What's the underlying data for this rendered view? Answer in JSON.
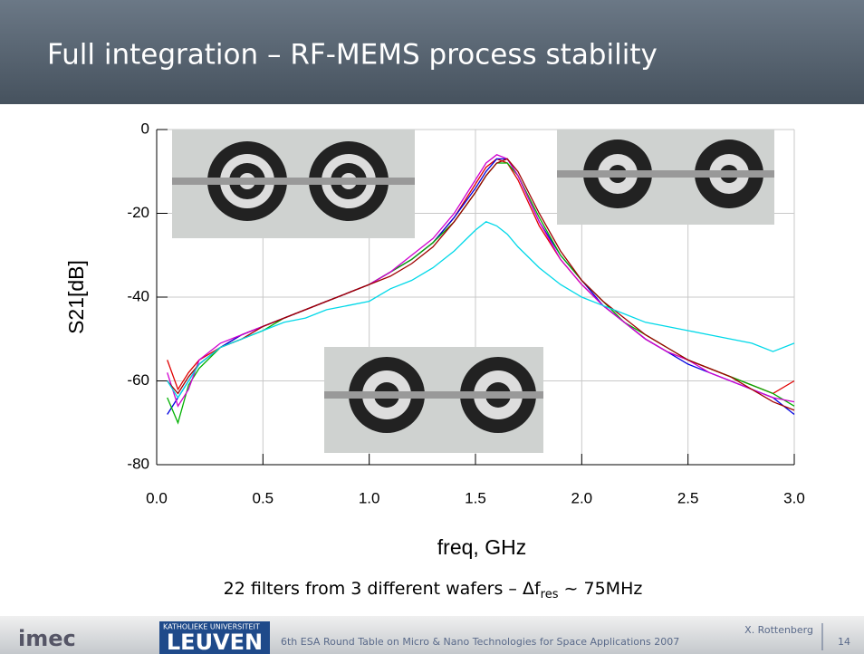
{
  "slide_title": "Full integration – RF-MEMS process stability",
  "chart_data": {
    "type": "line",
    "y_label": "S21[dB]",
    "x_label": "freq, GHz",
    "xlim": [
      0,
      3
    ],
    "ylim": [
      -80,
      0
    ],
    "xticks": [
      {
        "value": 0,
        "label": "0.0"
      },
      0.5,
      {
        "value": 1,
        "label": "1.0"
      },
      1.5,
      {
        "value": 2,
        "label": "2.0"
      },
      2.5,
      {
        "value": 3,
        "label": "3.0"
      }
    ],
    "yticks": [
      0,
      -20,
      -40,
      -60,
      -80
    ],
    "grid": true,
    "x": [
      0.05,
      0.1,
      0.15,
      0.2,
      0.3,
      0.4,
      0.5,
      0.6,
      0.7,
      0.8,
      0.9,
      1.0,
      1.1,
      1.2,
      1.3,
      1.4,
      1.5,
      1.55,
      1.6,
      1.65,
      1.7,
      1.8,
      1.9,
      2.0,
      2.1,
      2.2,
      2.3,
      2.4,
      2.5,
      2.6,
      2.7,
      2.8,
      2.9,
      3.0
    ],
    "series": [
      {
        "color": "#e00000",
        "values": [
          -55,
          -62,
          -58,
          -55,
          -52,
          -49,
          -47,
          -45,
          -43,
          -41,
          -39,
          -37,
          -34,
          -31,
          -27,
          -21,
          -13,
          -9,
          -7,
          -8,
          -12,
          -23,
          -31,
          -37,
          -42,
          -46,
          -50,
          -53,
          -55,
          -57,
          -59,
          -61,
          -63,
          -60
        ]
      },
      {
        "color": "#0000e0",
        "values": [
          -68,
          -64,
          -60,
          -56,
          -52,
          -49,
          -47,
          -45,
          -43,
          -41,
          -39,
          -37,
          -34,
          -31,
          -27,
          -21,
          -14,
          -10,
          -7,
          -7,
          -11,
          -22,
          -30,
          -36,
          -42,
          -46,
          -50,
          -53,
          -56,
          -58,
          -60,
          -62,
          -64,
          -68
        ]
      },
      {
        "color": "#00b000",
        "values": [
          -64,
          -70,
          -61,
          -57,
          -52,
          -50,
          -48,
          -45,
          -43,
          -41,
          -39,
          -37,
          -34,
          -31,
          -27,
          -22,
          -15,
          -11,
          -8,
          -8,
          -11,
          -21,
          -30,
          -36,
          -41,
          -46,
          -49,
          -52,
          -55,
          -57,
          -59,
          -61,
          -63,
          -66
        ]
      },
      {
        "color": "#d000d0",
        "values": [
          -58,
          -66,
          -62,
          -55,
          -51,
          -49,
          -47,
          -45,
          -43,
          -41,
          -39,
          -37,
          -34,
          -30,
          -26,
          -20,
          -12,
          -8,
          -6,
          -7,
          -11,
          -22,
          -31,
          -37,
          -42,
          -46,
          -50,
          -53,
          -55,
          -58,
          -60,
          -62,
          -64,
          -65
        ]
      },
      {
        "color": "#a00000",
        "values": [
          -60,
          -63,
          -59,
          -56,
          -52,
          -50,
          -47,
          -45,
          -43,
          -41,
          -39,
          -37,
          -35,
          -32,
          -28,
          -22,
          -15,
          -11,
          -8,
          -7,
          -10,
          -20,
          -29,
          -36,
          -41,
          -45,
          -49,
          -52,
          -55,
          -57,
          -59,
          -62,
          -65,
          -67
        ]
      },
      {
        "color": "#00d8e8",
        "values": [
          -60,
          -64,
          -60,
          -56,
          -52,
          -50,
          -48,
          -46,
          -45,
          -43,
          -42,
          -41,
          -38,
          -36,
          -33,
          -29,
          -24,
          -22,
          -23,
          -25,
          -28,
          -33,
          -37,
          -40,
          -42,
          -44,
          -46,
          -47,
          -48,
          -49,
          -50,
          -51,
          -53,
          -51
        ]
      }
    ]
  },
  "caption": {
    "text": "22 filters from 3 different wafers – Δf",
    "subscript": "res",
    "tail": " ~ 75MHz"
  },
  "footer": {
    "logo": "imec",
    "university_top": "KATHOLIEKE UNIVERSITEIT",
    "university": "LEUVEN",
    "event": "6th ESA Round Table on Micro & Nano Technologies for Space Applications  2007",
    "author": "X. Rottenberg",
    "page": "14"
  }
}
